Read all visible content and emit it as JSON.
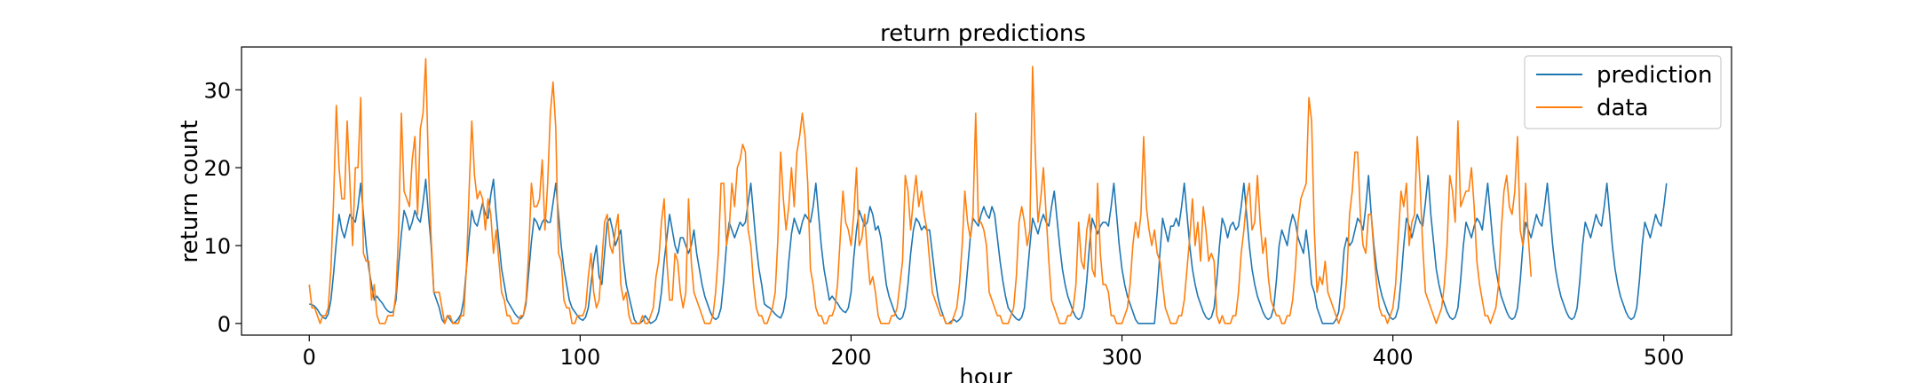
{
  "chart_data": {
    "type": "line",
    "title": "return predictions",
    "xlabel": "hour",
    "ylabel": "return count",
    "xlim": [
      -25,
      525
    ],
    "ylim": [
      -1.5,
      35.5
    ],
    "xticks": [
      0,
      100,
      200,
      300,
      400,
      500
    ],
    "yticks": [
      0,
      10,
      20,
      30
    ],
    "grid": false,
    "legend_position": "top-right",
    "colors": {
      "prediction": "#1f77b4",
      "data": "#ff7f0e"
    },
    "series": [
      {
        "name": "prediction",
        "x_start": 0,
        "values": [
          2.5,
          2.4,
          2.2,
          1.8,
          1.2,
          0.8,
          0.6,
          1.2,
          3.0,
          6.5,
          10.5,
          14.0,
          12.0,
          11.0,
          12.5,
          14.0,
          13.5,
          13.0,
          15.0,
          18.0,
          14.0,
          10.0,
          7.0,
          5.0,
          3.0,
          3.5,
          3.0,
          2.6,
          2.0,
          1.6,
          1.4,
          1.5,
          3.0,
          7.5,
          11.5,
          14.5,
          13.5,
          12.0,
          13.0,
          14.5,
          13.5,
          13.0,
          15.5,
          18.5,
          14.0,
          10.0,
          4.0,
          3.0,
          2.0,
          0.5,
          0.0,
          1.0,
          0.5,
          0.0,
          0.2,
          0.6,
          1.2,
          3.0,
          7.0,
          11.0,
          14.5,
          13.0,
          12.5,
          14.0,
          15.5,
          14.0,
          13.5,
          16.5,
          18.5,
          14.0,
          10.5,
          7.0,
          5.0,
          3.0,
          2.4,
          1.8,
          1.2,
          0.8,
          0.6,
          1.0,
          2.5,
          6.5,
          10.5,
          13.5,
          13.0,
          12.0,
          13.0,
          13.5,
          13.0,
          13.0,
          15.5,
          18.0,
          14.0,
          10.0,
          7.0,
          5.0,
          3.0,
          2.0,
          1.5,
          1.0,
          0.6,
          0.4,
          0.8,
          2.0,
          5.0,
          8.0,
          10.0,
          6.0,
          5.0,
          9.0,
          13.0,
          13.5,
          12.0,
          10.0,
          11.0,
          12.0,
          8.0,
          5.0,
          3.5,
          2.0,
          0.5,
          0.0,
          0.0,
          0.3,
          1.0,
          0.5,
          0.0,
          0.2,
          0.5,
          1.5,
          4.0,
          8.0,
          11.0,
          14.0,
          12.0,
          10.0,
          9.0,
          11.0,
          11.0,
          10.0,
          9.0,
          10.0,
          12.0,
          9.0,
          7.0,
          5.0,
          3.5,
          2.5,
          1.5,
          0.8,
          0.5,
          0.8,
          2.0,
          5.5,
          10.0,
          13.0,
          12.0,
          11.0,
          12.0,
          13.0,
          12.5,
          13.0,
          15.5,
          18.0,
          14.0,
          10.0,
          7.0,
          5.0,
          2.5,
          2.2,
          2.0,
          1.6,
          1.2,
          0.9,
          0.7,
          1.5,
          3.5,
          8.0,
          11.5,
          13.5,
          12.5,
          11.5,
          13.0,
          14.0,
          13.5,
          13.0,
          15.0,
          18.0,
          14.0,
          10.0,
          7.0,
          5.0,
          3.0,
          3.5,
          3.0,
          2.6,
          2.0,
          1.6,
          1.4,
          2.0,
          4.0,
          8.5,
          12.0,
          14.5,
          13.5,
          12.5,
          13.0,
          15.0,
          14.0,
          12.0,
          12.5,
          11.0,
          8.0,
          5.0,
          3.5,
          2.5,
          1.5,
          0.8,
          0.5,
          0.8,
          2.0,
          5.0,
          9.0,
          12.0,
          13.5,
          13.0,
          12.0,
          12.5,
          12.0,
          12.0,
          9.0,
          6.0,
          3.5,
          2.0,
          1.0,
          0.0,
          0.0,
          0.3,
          0.5,
          0.2,
          0.5,
          1.0,
          3.0,
          7.0,
          11.0,
          13.5,
          13.0,
          12.5,
          14.0,
          15.0,
          14.0,
          13.5,
          15.0,
          14.0,
          11.0,
          8.0,
          5.5,
          3.5,
          2.0,
          1.5,
          1.0,
          0.6,
          0.4,
          0.8,
          2.0,
          6.0,
          10.0,
          13.5,
          12.5,
          11.5,
          13.0,
          14.0,
          13.0,
          12.5,
          15.0,
          17.0,
          13.5,
          10.0,
          7.0,
          5.0,
          3.5,
          2.5,
          1.5,
          0.8,
          0.5,
          0.8,
          2.0,
          5.5,
          10.0,
          13.5,
          12.5,
          11.5,
          12.5,
          13.0,
          13.0,
          12.5,
          15.0,
          18.0,
          14.0,
          10.0,
          7.0,
          5.0,
          3.5,
          2.5,
          1.5,
          0.5,
          0.0,
          0.0,
          0.0,
          0.0,
          0.0,
          0.0,
          0.0,
          4.0,
          9.0,
          13.5,
          12.0,
          10.5,
          12.5,
          12.5,
          13.5,
          12.5,
          15.0,
          18.0,
          14.0,
          10.0,
          7.0,
          5.0,
          3.5,
          2.5,
          1.5,
          0.8,
          0.5,
          0.8,
          2.0,
          5.5,
          10.0,
          13.5,
          12.5,
          11.0,
          12.5,
          13.0,
          12.0,
          12.5,
          15.0,
          18.0,
          14.0,
          10.0,
          7.0,
          5.0,
          3.5,
          2.5,
          1.5,
          0.8,
          0.5,
          0.8,
          2.0,
          5.5,
          10.0,
          12.0,
          11.0,
          10.0,
          12.5,
          14.0,
          13.0,
          11.0,
          10.0,
          9.0,
          12.0,
          9.0,
          5.0,
          4.0,
          2.0,
          1.0,
          0.0,
          0.0,
          0.0,
          0.0,
          0.0,
          0.5,
          1.5,
          5.0,
          9.5,
          11.0,
          10.0,
          10.5,
          12.0,
          13.5,
          13.0,
          12.0,
          15.0,
          19.0,
          14.0,
          10.0,
          7.0,
          5.0,
          3.5,
          2.5,
          1.5,
          0.8,
          0.5,
          0.8,
          2.0,
          5.5,
          10.0,
          13.5,
          12.5,
          11.0,
          12.5,
          14.0,
          13.0,
          12.5,
          15.5,
          19.0,
          14.0,
          10.5,
          7.0,
          5.0,
          3.5,
          2.5,
          1.5,
          0.8,
          0.5,
          0.8,
          2.0,
          5.5,
          10.0,
          13.0,
          12.0,
          11.0,
          12.5,
          13.5,
          13.0,
          12.0,
          15.0,
          18.0,
          14.0,
          10.0,
          7.0,
          5.0,
          3.5,
          2.5,
          1.5,
          0.8,
          0.5,
          0.8,
          2.0,
          5.5,
          10.0,
          13.0,
          12.0,
          11.0,
          12.5,
          14.0,
          13.0,
          12.5,
          15.0,
          18.0,
          14.0,
          10.0,
          7.0,
          5.0,
          3.5,
          2.5,
          1.5,
          0.8,
          0.5,
          0.8,
          2.0,
          5.5,
          10.0,
          13.0,
          12.0,
          11.0,
          12.5,
          14.0,
          13.0,
          12.5,
          15.0,
          18.0,
          14.0,
          10.0,
          7.0,
          5.0,
          3.5,
          2.5,
          1.5,
          0.8,
          0.5,
          0.8,
          2.0,
          5.5,
          10.0,
          13.0,
          12.0,
          11.0,
          12.5,
          14.0,
          13.0,
          12.5,
          15.0,
          18.0
        ]
      },
      {
        "name": "data",
        "x_start": 0,
        "values": [
          5,
          2,
          2,
          1,
          0,
          1,
          1,
          2,
          7,
          16,
          28,
          20,
          16,
          16,
          26,
          18,
          10,
          20,
          20,
          29,
          9,
          8,
          8,
          3,
          5,
          1,
          0,
          0,
          0,
          1,
          1,
          1,
          4,
          12,
          27,
          17,
          16,
          15,
          21,
          24,
          14,
          25,
          27,
          34,
          20,
          11,
          4,
          4,
          4,
          2,
          0,
          1,
          1,
          0,
          0,
          0,
          1,
          1,
          7,
          17,
          26,
          19,
          16,
          17,
          16,
          12,
          16,
          14,
          9,
          12,
          8,
          4,
          3,
          1,
          1,
          0,
          0,
          0,
          1,
          1,
          3,
          9,
          18,
          15,
          15,
          16,
          21,
          12,
          18,
          27,
          31,
          25,
          9,
          8,
          3,
          2,
          2,
          0,
          0,
          1,
          1,
          1,
          2,
          6,
          9,
          4,
          2,
          3,
          8,
          13,
          14,
          10,
          9,
          12,
          14,
          5,
          3,
          4,
          1,
          0,
          0,
          0,
          0,
          1,
          0,
          0,
          1,
          2,
          6,
          8,
          13,
          16,
          8,
          3,
          3,
          9,
          8,
          4,
          2,
          4,
          16,
          8,
          4,
          3,
          2,
          1,
          0,
          0,
          0,
          1,
          4,
          9,
          18,
          18,
          10,
          12,
          18,
          15,
          20,
          21,
          23,
          22,
          12,
          10,
          5,
          2,
          1,
          1,
          0,
          0,
          1,
          2,
          4,
          11,
          22,
          16,
          12,
          15,
          20,
          15,
          22,
          24,
          27,
          24,
          18,
          7,
          5,
          2,
          1,
          1,
          0,
          0,
          1,
          1,
          2,
          5,
          11,
          17,
          13,
          12,
          10,
          14,
          20,
          10,
          11,
          14,
          9,
          5,
          6,
          4,
          1,
          0,
          0,
          0,
          0,
          1,
          1,
          2,
          5,
          8,
          19,
          17,
          12,
          16,
          19,
          15,
          17,
          14,
          12,
          8,
          4,
          3,
          2,
          1,
          1,
          0,
          0,
          0,
          1,
          2,
          5,
          10,
          17,
          13,
          11,
          14,
          27,
          13,
          13,
          12,
          10,
          4,
          3,
          2,
          1,
          1,
          0,
          0,
          0,
          1,
          2,
          6,
          13,
          15,
          13,
          10,
          12,
          33,
          22,
          13,
          16,
          20,
          14,
          8,
          3,
          2,
          1,
          0,
          0,
          0,
          1,
          1,
          2,
          5,
          13,
          8,
          7,
          12,
          14,
          7,
          6,
          18,
          9,
          5,
          5,
          4,
          1,
          1,
          0,
          0,
          0,
          1,
          2,
          5,
          10,
          13,
          11,
          14,
          24,
          15,
          12,
          10,
          12,
          9,
          8,
          5,
          2,
          1,
          0,
          0,
          0,
          1,
          1,
          3,
          7,
          11,
          16,
          10,
          13,
          8,
          15,
          12,
          8,
          9,
          8,
          1,
          0,
          1,
          0,
          0,
          0,
          1,
          1,
          4,
          9,
          12,
          16,
          18,
          12,
          13,
          19,
          13,
          9,
          11,
          6,
          3,
          2,
          1,
          1,
          0,
          0,
          1,
          1,
          3,
          7,
          13,
          16,
          17,
          18,
          29,
          26,
          12,
          4,
          6,
          5,
          8,
          4,
          3,
          2,
          1,
          0,
          1,
          2,
          6,
          14,
          17,
          22,
          22,
          14,
          10,
          9,
          14,
          14,
          9,
          5,
          2,
          1,
          1,
          0,
          1,
          2,
          5,
          11,
          17,
          15,
          18,
          10,
          13,
          14,
          24,
          18,
          10,
          4,
          3,
          2,
          1,
          0,
          1,
          2,
          5,
          10,
          19,
          17,
          13,
          26,
          15,
          16,
          17,
          17,
          20,
          15,
          8,
          5,
          3,
          1,
          1,
          0,
          1,
          2,
          5,
          12,
          17,
          19,
          15,
          14,
          17,
          24,
          12,
          10,
          18,
          11,
          6
        ]
      }
    ]
  }
}
